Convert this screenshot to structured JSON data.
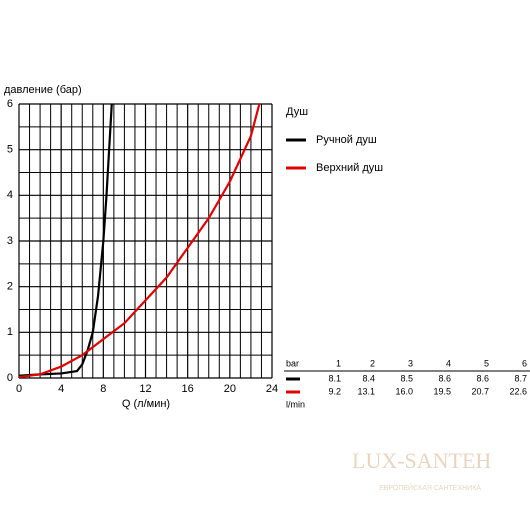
{
  "chart_data": {
    "type": "line",
    "ylabel": "давление (бар)",
    "xlabel": "Q (л/мин)",
    "xlim": [
      0,
      24
    ],
    "xticks": [
      0,
      4,
      8,
      12,
      16,
      20,
      24
    ],
    "ylim": [
      0,
      6
    ],
    "yticks": [
      0,
      1,
      2,
      3,
      4,
      5,
      6
    ],
    "grid": true,
    "legend_title": "Душ",
    "series": [
      {
        "name": "Ручной душ",
        "color": "#000000",
        "x": [
          0,
          2,
          4,
          5.5,
          6,
          6.5,
          7,
          7.5,
          8,
          8.3,
          8.6,
          8.8
        ],
        "values": [
          0.05,
          0.08,
          0.1,
          0.15,
          0.3,
          0.6,
          1.0,
          1.8,
          3.0,
          4.0,
          5.2,
          6.0
        ]
      },
      {
        "name": "Верхний душ",
        "color": "#e00000",
        "x": [
          0,
          2,
          4,
          6,
          8,
          10,
          12,
          14,
          16,
          18,
          20,
          22,
          22.8
        ],
        "values": [
          0.02,
          0.08,
          0.25,
          0.5,
          0.85,
          1.2,
          1.7,
          2.2,
          2.85,
          3.5,
          4.3,
          5.3,
          6.0
        ]
      }
    ]
  },
  "table": {
    "header_label": "bar",
    "columns": [
      1,
      2,
      3,
      4,
      5,
      6
    ],
    "rows": [
      [
        8.1,
        8.4,
        8.5,
        8.6,
        8.6,
        8.7
      ],
      [
        9.2,
        13.1,
        16.0,
        19.5,
        20.7,
        22.6
      ]
    ],
    "value_labels": [
      [
        "8.1",
        "8.4",
        "8.5",
        "8.6",
        "8.6",
        "8.7"
      ],
      [
        "9.2",
        "13.1",
        "16.0",
        "19.5",
        "20.7",
        "22.6"
      ]
    ],
    "unit": "l/min"
  },
  "watermark": {
    "brand": "LUX-SANTEH",
    "tagline": "ЕВРОПЕЙСКАЯ САНТЕХНИКА"
  }
}
